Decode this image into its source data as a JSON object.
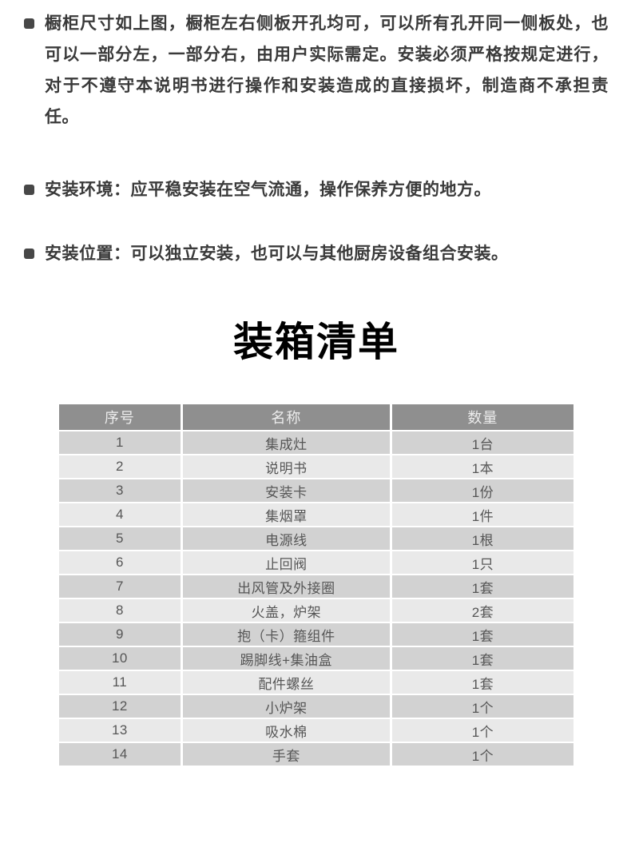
{
  "notes": [
    "橱柜尺寸如上图，橱柜左右侧板开孔均可，可以所有孔开同一侧板处，也可以一部分左，一部分右，由用户实际需定。安装必须严格按规定进行，对于不遵守本说明书进行操作和安装造成的直接损坏，制造商不承担责任。",
    "安装环境：应平稳安装在空气流通，操作保养方便的地方。",
    "安装位置：可以独立安装，也可以与其他厨房设备组合安装。"
  ],
  "title": "装箱清单",
  "table": {
    "headers": [
      "序号",
      "名称",
      "数量"
    ],
    "rows": [
      {
        "no": "1",
        "name": "集成灶",
        "qty": "1台",
        "shade": "dark"
      },
      {
        "no": "2",
        "name": "说明书",
        "qty": "1本",
        "shade": "light"
      },
      {
        "no": "3",
        "name": "安装卡",
        "qty": "1份",
        "shade": "dark"
      },
      {
        "no": "4",
        "name": "集烟罩",
        "qty": "1件",
        "shade": "light"
      },
      {
        "no": "5",
        "name": "电源线",
        "qty": "1根",
        "shade": "dark"
      },
      {
        "no": "6",
        "name": "止回阀",
        "qty": "1只",
        "shade": "light"
      },
      {
        "no": "7",
        "name": "出风管及外接圈",
        "qty": "1套",
        "shade": "dark"
      },
      {
        "no": "8",
        "name": "火盖，炉架",
        "qty": "2套",
        "shade": "light"
      },
      {
        "no": "9",
        "name": "抱（卡）箍组件",
        "qty": "1套",
        "shade": "dark"
      },
      {
        "no": "10",
        "name": "踢脚线+集油盒",
        "qty": "1套",
        "shade": "dark"
      },
      {
        "no": "11",
        "name": "配件螺丝",
        "qty": "1套",
        "shade": "light"
      },
      {
        "no": "12",
        "name": "小炉架",
        "qty": "1个",
        "shade": "dark"
      },
      {
        "no": "13",
        "name": "吸水棉",
        "qty": "1个",
        "shade": "light"
      },
      {
        "no": "14",
        "name": "手套",
        "qty": "1个",
        "shade": "dark"
      }
    ]
  },
  "colors": {
    "note_text": "#3a3a3a",
    "bullet": "#474747",
    "title": "#000000",
    "header_bg": "#8f8f8f",
    "header_text": "#ececec",
    "row_dark": "#d2d2d2",
    "row_light": "#e9e9e9",
    "cell_text": "#565656"
  }
}
